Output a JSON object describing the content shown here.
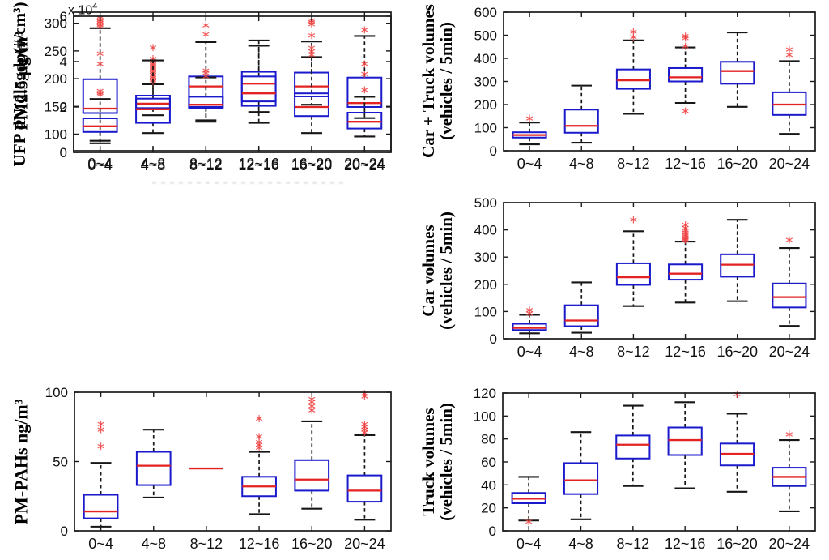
{
  "figure": {
    "background": "#ffffff",
    "description_categories": [
      "0~4",
      "4~8",
      "8~12",
      "12~16",
      "16~20",
      "20~24"
    ]
  },
  "colors": {
    "box": "#1a1acc",
    "median": "#e32222",
    "outlier": "#ee4040",
    "whisker": "#161616",
    "frame": "#1a1a1a",
    "tick_text": "#111111"
  },
  "chart_data": [
    {
      "type": "boxplot",
      "ylabel": "PM2.5 µg/m³",
      "ylabel_lines": [
        "PM2.5 µg/m³"
      ],
      "ylim": [
        70,
        320
      ],
      "yticks": [
        100,
        150,
        200,
        250,
        300
      ],
      "categories": [
        "0~4",
        "4~8",
        "8~12",
        "12~16",
        "16~20",
        "20~24"
      ],
      "boxes": [
        {
          "category": "0~4",
          "whisker_low": 88,
          "q1": 138,
          "median": 146,
          "q3": 199,
          "whisker_high": 291,
          "outliers": [
            294,
            297,
            300,
            303,
            306,
            309
          ]
        },
        {
          "category": "4~8",
          "whisker_low": 134,
          "q1": 147,
          "median": 155,
          "q3": 164,
          "whisker_high": 190,
          "outliers": [
            195,
            198,
            201,
            204,
            207,
            210,
            213,
            216,
            219,
            222,
            225,
            228,
            232,
            236,
            256
          ]
        },
        {
          "category": "8~12",
          "whisker_low": 125,
          "q1": 149,
          "median": 186,
          "q3": 204,
          "whisker_high": 266,
          "outliers": []
        },
        {
          "category": "12~16",
          "whisker_low": 140,
          "q1": 159,
          "median": 191,
          "q3": 204,
          "whisker_high": 269,
          "outliers": []
        },
        {
          "category": "16~20",
          "whisker_low": 153,
          "q1": 168,
          "median": 186,
          "q3": 211,
          "whisker_high": 267,
          "outliers": [
            278,
            302,
            305
          ]
        },
        {
          "category": "20~24",
          "whisker_low": 129,
          "q1": 149,
          "median": 156,
          "q3": 202,
          "whisker_high": 277,
          "outliers": [
            288
          ]
        }
      ]
    },
    {
      "type": "boxplot",
      "ylabel": "Car + Truck volumes (vehicles / 5min)",
      "ylabel_lines": [
        "Car + Truck volumes",
        "(vehicles / 5min)"
      ],
      "ylim": [
        0,
        600
      ],
      "yticks": [
        0,
        100,
        200,
        300,
        400,
        500,
        600
      ],
      "categories": [
        "0~4",
        "4~8",
        "8~12",
        "12~16",
        "16~20",
        "20~24"
      ],
      "boxes": [
        {
          "category": "0~4",
          "whisker_low": 28,
          "q1": 57,
          "median": 68,
          "q3": 80,
          "whisker_high": 122,
          "outliers": [
            140
          ]
        },
        {
          "category": "4~8",
          "whisker_low": 35,
          "q1": 78,
          "median": 108,
          "q3": 178,
          "whisker_high": 282,
          "outliers": []
        },
        {
          "category": "8~12",
          "whisker_low": 160,
          "q1": 268,
          "median": 305,
          "q3": 352,
          "whisker_high": 478,
          "outliers": [
            492,
            515
          ]
        },
        {
          "category": "12~16",
          "whisker_low": 207,
          "q1": 300,
          "median": 318,
          "q3": 358,
          "whisker_high": 447,
          "outliers": [
            172,
            452,
            488,
            496
          ]
        },
        {
          "category": "16~20",
          "whisker_low": 190,
          "q1": 290,
          "median": 345,
          "q3": 385,
          "whisker_high": 512,
          "outliers": []
        },
        {
          "category": "20~24",
          "whisker_low": 73,
          "q1": 155,
          "median": 200,
          "q3": 253,
          "whisker_high": 388,
          "outliers": [
            415,
            438
          ]
        }
      ]
    },
    {
      "type": "boxplot",
      "ylabel": "UFP dN/dlogdp(#/cm³)",
      "ylabel_lines": [
        "UFP dN/dlogdp(#/cm³)"
      ],
      "scale_label": {
        "base": "x 10",
        "exp": "4"
      },
      "value_unit_multiplier": 10000,
      "ylim": [
        0,
        6
      ],
      "yticks": [
        0,
        2,
        4,
        6
      ],
      "categories": [
        "0~4",
        "4~8",
        "8~12",
        "12~16",
        "16~20",
        "20~24"
      ],
      "boxes": [
        {
          "category": "0~4",
          "whisker_low": 0.4,
          "q1": 0.9,
          "median": 1.15,
          "q3": 1.5,
          "whisker_high": 2.35,
          "outliers": [
            2.55,
            2.62,
            2.7,
            3.9,
            4.35
          ]
        },
        {
          "category": "4~8",
          "whisker_low": 0.85,
          "q1": 1.3,
          "median": 1.9,
          "q3": 2.5,
          "whisker_high": 4.05,
          "outliers": []
        },
        {
          "category": "8~12",
          "whisker_low": 1.35,
          "q1": 1.95,
          "median": 2.1,
          "q3": 2.45,
          "whisker_high": 3.3,
          "outliers": [
            3.35,
            3.5,
            3.6,
            5.2,
            5.6
          ]
        },
        {
          "category": "12~16",
          "whisker_low": 1.3,
          "q1": 2.05,
          "median": 2.6,
          "q3": 3.55,
          "whisker_high": 4.7,
          "outliers": []
        },
        {
          "category": "16~20",
          "whisker_low": 0.85,
          "q1": 1.6,
          "median": 2.0,
          "q3": 2.6,
          "whisker_high": 4.2,
          "outliers": [
            4.3,
            4.45,
            4.6,
            5.65
          ]
        },
        {
          "category": "20~24",
          "whisker_low": 0.7,
          "q1": 1.05,
          "median": 1.35,
          "q3": 1.75,
          "whisker_high": 2.45,
          "outliers": [
            2.75,
            3.45,
            3.9
          ]
        }
      ]
    },
    {
      "type": "boxplot",
      "ylabel": "Car volumes (vehicles / 5min)",
      "ylabel_lines": [
        "Car volumes",
        "(vehicles / 5min)"
      ],
      "ylim": [
        0,
        500
      ],
      "yticks": [
        0,
        100,
        200,
        300,
        400,
        500
      ],
      "categories": [
        "0~4",
        "4~8",
        "8~12",
        "12~16",
        "16~20",
        "20~24"
      ],
      "boxes": [
        {
          "category": "0~4",
          "whisker_low": 20,
          "q1": 32,
          "median": 40,
          "q3": 55,
          "whisker_high": 88,
          "outliers": [
            93,
            105
          ]
        },
        {
          "category": "4~8",
          "whisker_low": 22,
          "q1": 46,
          "median": 67,
          "q3": 123,
          "whisker_high": 207,
          "outliers": []
        },
        {
          "category": "8~12",
          "whisker_low": 120,
          "q1": 198,
          "median": 226,
          "q3": 277,
          "whisker_high": 395,
          "outliers": [
            437
          ]
        },
        {
          "category": "12~16",
          "whisker_low": 133,
          "q1": 217,
          "median": 239,
          "q3": 273,
          "whisker_high": 357,
          "outliers": [
            362,
            366,
            371,
            377,
            383,
            390,
            398,
            407,
            418
          ]
        },
        {
          "category": "16~20",
          "whisker_low": 138,
          "q1": 228,
          "median": 272,
          "q3": 310,
          "whisker_high": 437,
          "outliers": []
        },
        {
          "category": "20~24",
          "whisker_low": 47,
          "q1": 115,
          "median": 153,
          "q3": 203,
          "whisker_high": 333,
          "outliers": [
            363
          ]
        }
      ]
    },
    {
      "type": "boxplot",
      "ylabel": "PM-PAHs ng/m³",
      "ylabel_lines": [
        "PM-PAHs ng/m³"
      ],
      "ylim": [
        0,
        100
      ],
      "yticks": [
        0,
        50,
        100
      ],
      "categories": [
        "0~4",
        "4~8",
        "8~12",
        "12~16",
        "16~20",
        "20~24"
      ],
      "boxes": [
        {
          "category": "0~4",
          "whisker_low": 3,
          "q1": 9,
          "median": 14,
          "q3": 26,
          "whisker_high": 49,
          "outliers": [
            61,
            73,
            77
          ]
        },
        {
          "category": "4~8",
          "whisker_low": 24,
          "q1": 33,
          "median": 47,
          "q3": 57,
          "whisker_high": 73,
          "outliers": []
        },
        {
          "category": "8~12",
          "whisker_low": 45,
          "q1": 45,
          "median": 45,
          "q3": 45,
          "whisker_high": 45,
          "outliers": []
        },
        {
          "category": "12~16",
          "whisker_low": 12,
          "q1": 25,
          "median": 32,
          "q3": 39,
          "whisker_high": 57,
          "outliers": [
            60,
            62,
            64,
            68,
            81
          ]
        },
        {
          "category": "16~20",
          "whisker_low": 16,
          "q1": 29,
          "median": 37,
          "q3": 51,
          "whisker_high": 79,
          "outliers": [
            87,
            90,
            93,
            95
          ]
        },
        {
          "category": "20~24",
          "whisker_low": 8,
          "q1": 21,
          "median": 29,
          "q3": 40,
          "whisker_high": 69,
          "outliers": [
            71,
            73,
            75,
            77,
            97,
            99
          ]
        }
      ]
    },
    {
      "type": "boxplot",
      "ylabel": "Truck volumes (vehicles / 5min)",
      "ylabel_lines": [
        "Truck volumes",
        "(vehicles / 5min)"
      ],
      "ylim": [
        0,
        120
      ],
      "yticks": [
        0,
        20,
        40,
        60,
        80,
        100,
        120
      ],
      "categories": [
        "0~4",
        "4~8",
        "8~12",
        "12~16",
        "16~20",
        "20~24"
      ],
      "boxes": [
        {
          "category": "0~4",
          "whisker_low": 9,
          "q1": 24,
          "median": 28,
          "q3": 33,
          "whisker_high": 47,
          "outliers": [
            8
          ]
        },
        {
          "category": "4~8",
          "whisker_low": 10,
          "q1": 32,
          "median": 44,
          "q3": 59,
          "whisker_high": 86,
          "outliers": []
        },
        {
          "category": "8~12",
          "whisker_low": 39,
          "q1": 63,
          "median": 75,
          "q3": 83,
          "whisker_high": 109,
          "outliers": []
        },
        {
          "category": "12~16",
          "whisker_low": 37,
          "q1": 66,
          "median": 79,
          "q3": 90,
          "whisker_high": 112,
          "outliers": []
        },
        {
          "category": "16~20",
          "whisker_low": 34,
          "q1": 57,
          "median": 67,
          "q3": 76,
          "whisker_high": 102,
          "outliers": [
            119
          ]
        },
        {
          "category": "20~24",
          "whisker_low": 17,
          "q1": 39,
          "median": 47,
          "q3": 55,
          "whisker_high": 79,
          "outliers": [
            84
          ]
        }
      ]
    }
  ]
}
